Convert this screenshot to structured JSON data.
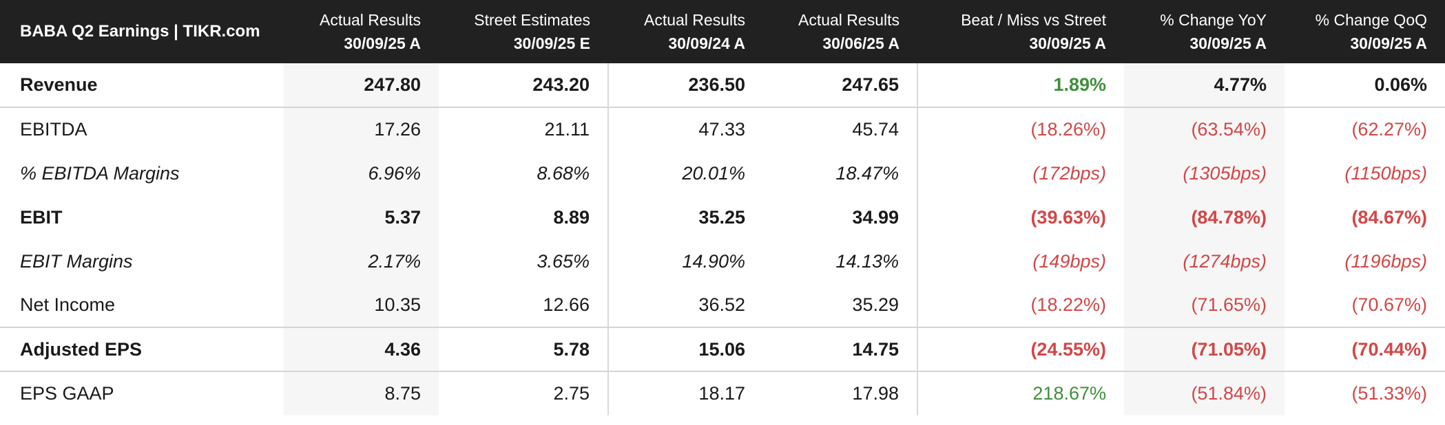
{
  "chart_data": {
    "type": "table",
    "title": "BABA Q2 Earnings | TIKR.com",
    "columns": [
      {
        "label": "Actual Results",
        "period": "30/09/25 A"
      },
      {
        "label": "Street Estimates",
        "period": "30/09/25 E"
      },
      {
        "label": "Actual Results",
        "period": "30/09/24 A"
      },
      {
        "label": "Actual Results",
        "period": "30/06/25 A"
      },
      {
        "label": "Beat / Miss vs Street",
        "period": "30/09/25 A"
      },
      {
        "label": "% Change YoY",
        "period": "30/09/25 A"
      },
      {
        "label": "% Change QoQ",
        "period": "30/09/25 A"
      }
    ],
    "rows": [
      {
        "label": "Revenue",
        "style": "bold",
        "values": [
          "247.80",
          "243.20",
          "236.50",
          "247.65",
          "1.89%",
          "4.77%",
          "0.06%"
        ],
        "tones": [
          "neu",
          "neu",
          "neu",
          "neu",
          "pos",
          "neu",
          "neu"
        ]
      },
      {
        "label": "EBITDA",
        "style": "normal",
        "values": [
          "17.26",
          "21.11",
          "47.33",
          "45.74",
          "(18.26%)",
          "(63.54%)",
          "(62.27%)"
        ],
        "tones": [
          "neu",
          "neu",
          "neu",
          "neu",
          "neg",
          "neg",
          "neg"
        ]
      },
      {
        "label": "% EBITDA Margins",
        "style": "italic",
        "values": [
          "6.96%",
          "8.68%",
          "20.01%",
          "18.47%",
          "(172bps)",
          "(1305bps)",
          "(1150bps)"
        ],
        "tones": [
          "neu",
          "neu",
          "neu",
          "neu",
          "neg",
          "neg",
          "neg"
        ]
      },
      {
        "label": "EBIT",
        "style": "bold",
        "values": [
          "5.37",
          "8.89",
          "35.25",
          "34.99",
          "(39.63%)",
          "(84.78%)",
          "(84.67%)"
        ],
        "tones": [
          "neu",
          "neu",
          "neu",
          "neu",
          "neg",
          "neg",
          "neg"
        ]
      },
      {
        "label": "EBIT Margins",
        "style": "italic",
        "values": [
          "2.17%",
          "3.65%",
          "14.90%",
          "14.13%",
          "(149bps)",
          "(1274bps)",
          "(1196bps)"
        ],
        "tones": [
          "neu",
          "neu",
          "neu",
          "neu",
          "neg",
          "neg",
          "neg"
        ]
      },
      {
        "label": "Net Income",
        "style": "normal",
        "values": [
          "10.35",
          "12.66",
          "36.52",
          "35.29",
          "(18.22%)",
          "(71.65%)",
          "(70.67%)"
        ],
        "tones": [
          "neu",
          "neu",
          "neu",
          "neu",
          "neg",
          "neg",
          "neg"
        ]
      },
      {
        "label": "Adjusted EPS",
        "style": "bold",
        "values": [
          "4.36",
          "5.78",
          "15.06",
          "14.75",
          "(24.55%)",
          "(71.05%)",
          "(70.44%)"
        ],
        "tones": [
          "neu",
          "neu",
          "neu",
          "neu",
          "neg",
          "neg",
          "neg"
        ]
      },
      {
        "label": "EPS GAAP",
        "style": "normal",
        "values": [
          "8.75",
          "2.75",
          "18.17",
          "17.98",
          "218.67%",
          "(51.84%)",
          "(51.33%)"
        ],
        "tones": [
          "neu",
          "neu",
          "neu",
          "neu",
          "pos",
          "neg",
          "neg"
        ]
      }
    ],
    "colors": {
      "header_bg": "#212121",
      "positive": "#3f8f3a",
      "negative": "#d34646",
      "shade": "#f6f6f6"
    }
  }
}
